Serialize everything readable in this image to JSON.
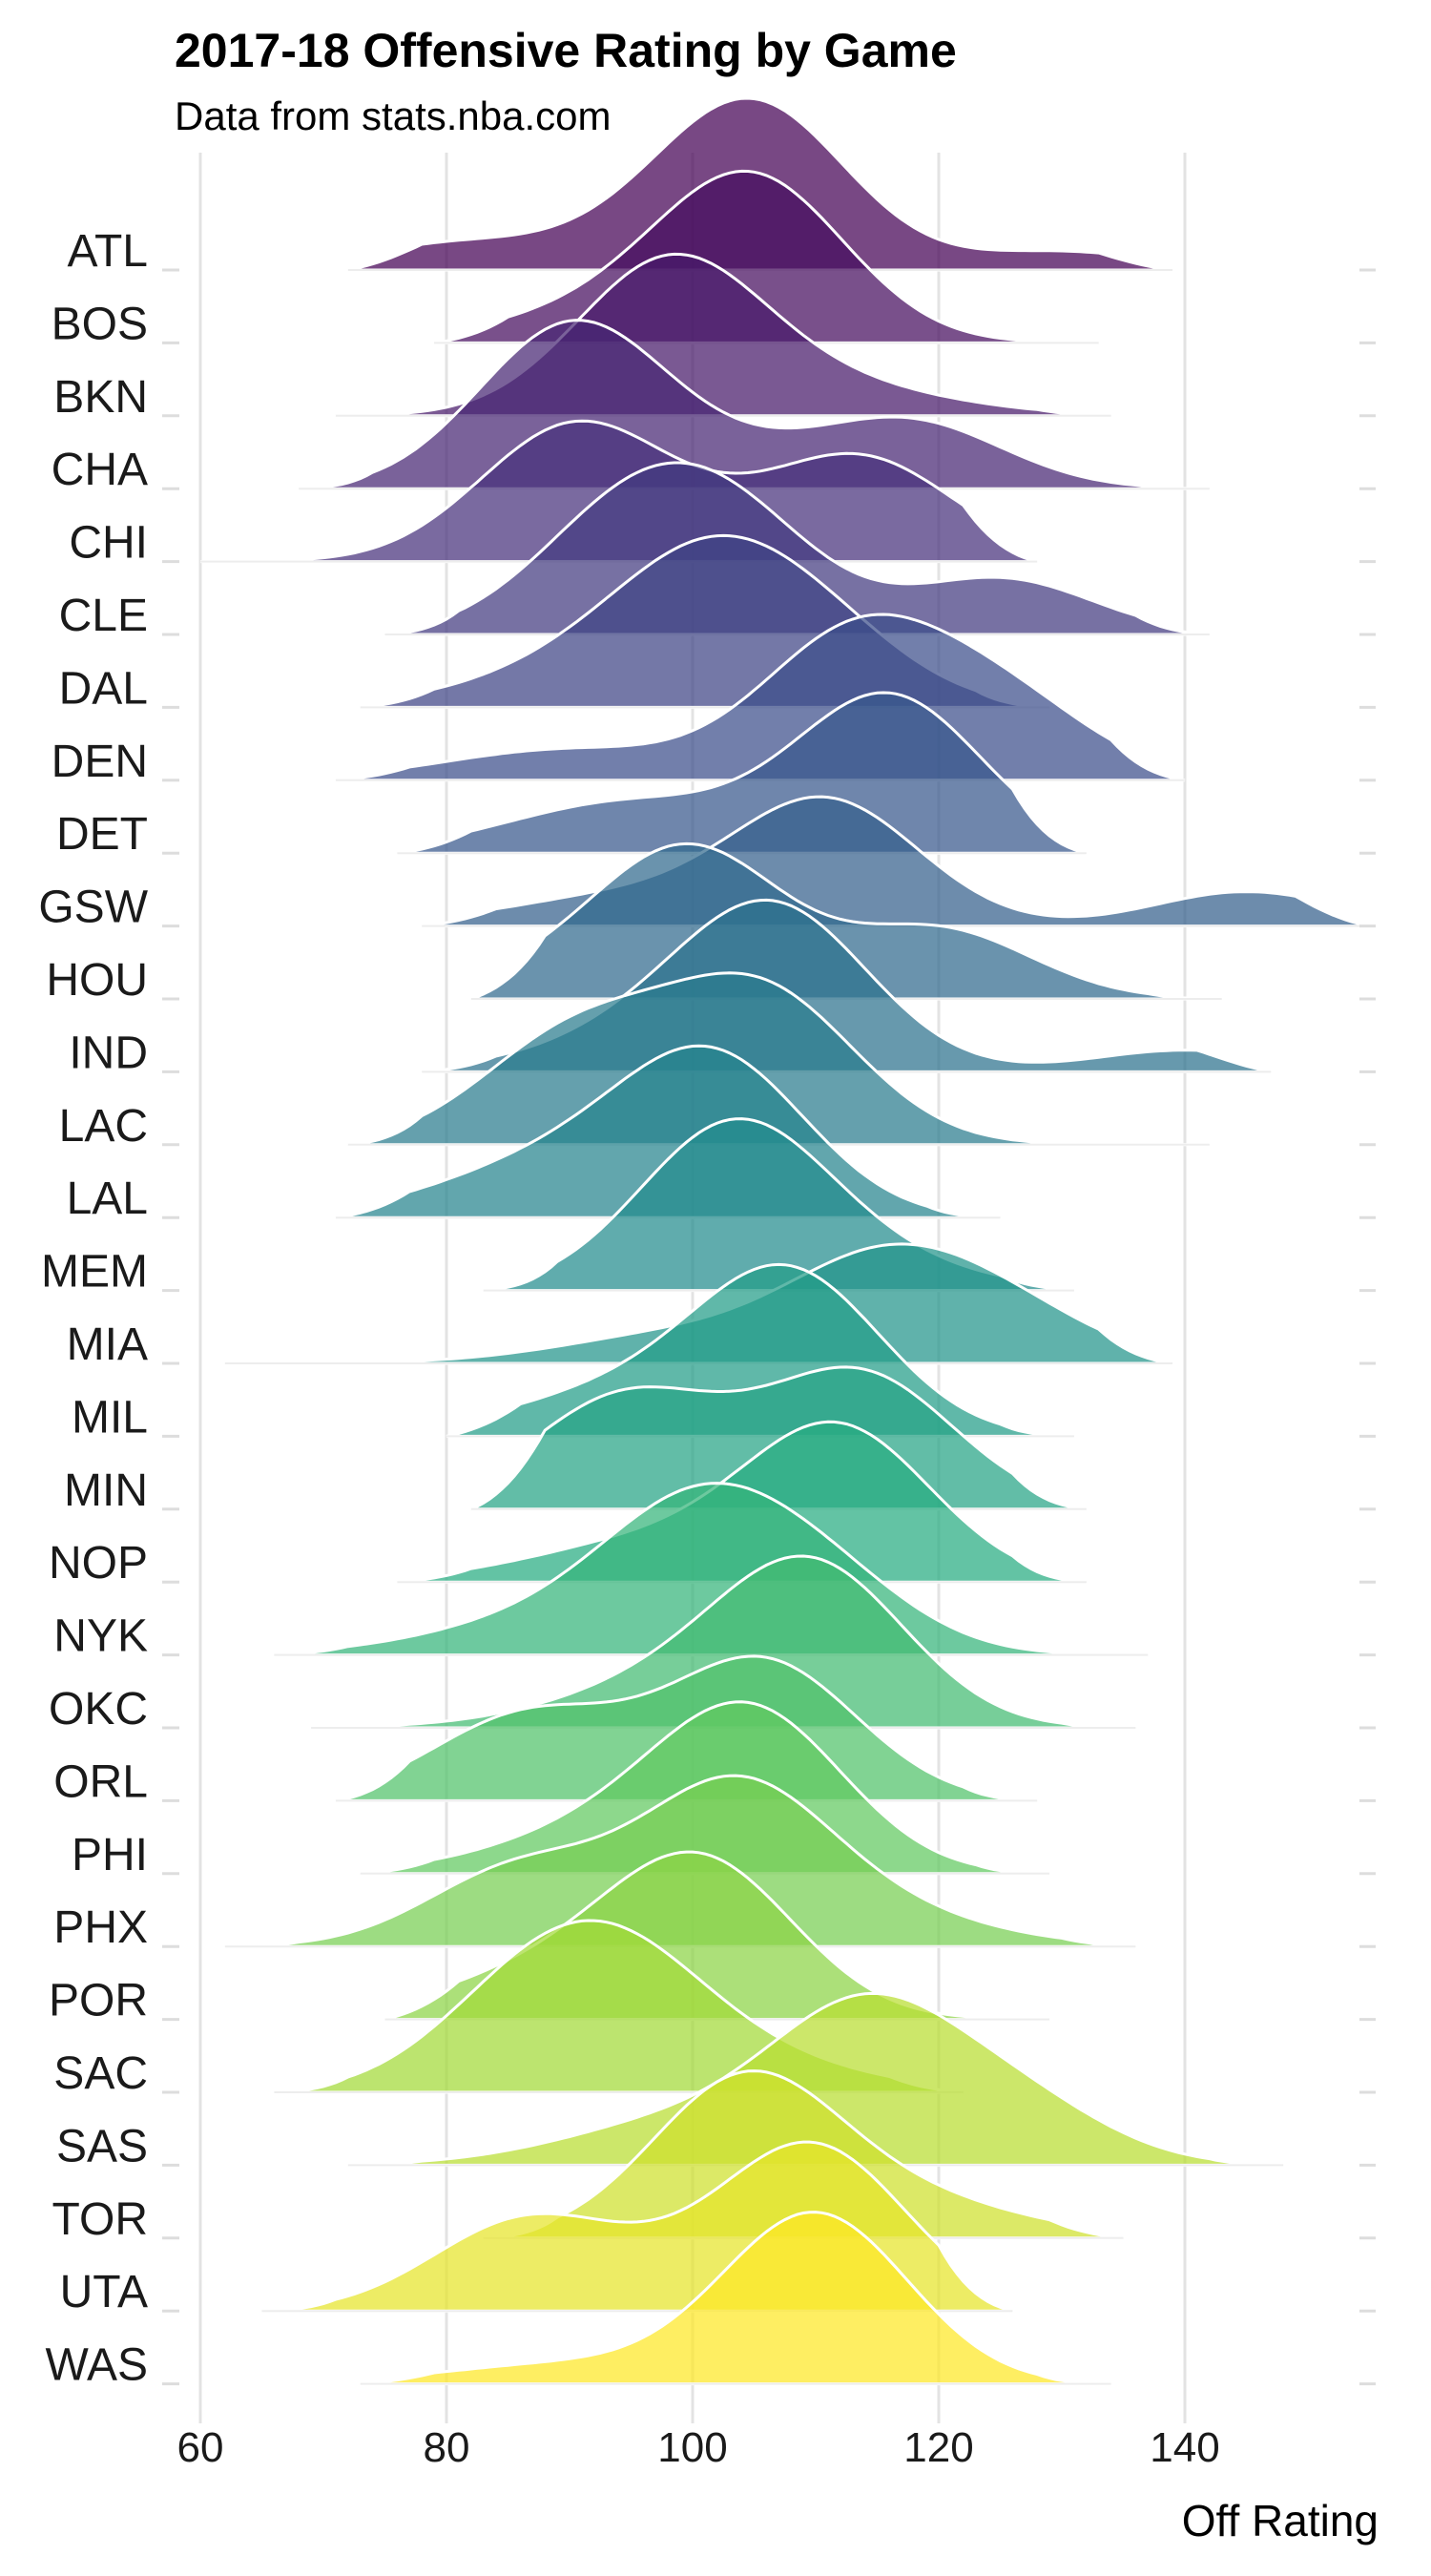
{
  "title": "2017-18 Offensive Rating by Game",
  "subtitle": "Data from stats.nba.com",
  "chart_data": {
    "type": "ridgeline",
    "xlabel": "Off Rating",
    "xlim": [
      58,
      155
    ],
    "x_ticks": [
      60,
      80,
      100,
      120,
      140
    ],
    "grid": "vertical major lines",
    "fill_palette": "viridis (purple to yellow, top to bottom)",
    "outline_color": "#ffffff",
    "series": [
      {
        "name": "ATL",
        "range": [
          72,
          139
        ],
        "peaks": [
          [
            80,
            0.15
          ],
          [
            105,
            0.95
          ],
          [
            130,
            0.12
          ]
        ],
        "secondary_peak": [
          99,
          0.35
        ]
      },
      {
        "name": "BOS",
        "range": [
          79,
          133
        ],
        "peaks": [
          [
            105,
            1.0
          ]
        ],
        "secondary_peak": [
          95,
          0.4
        ]
      },
      {
        "name": "BKN",
        "range": [
          71,
          134
        ],
        "peaks": [
          [
            98,
            0.85
          ]
        ],
        "secondary_peak": [
          110,
          0.3
        ]
      },
      {
        "name": "CHA",
        "range": [
          68,
          142
        ],
        "peaks": [
          [
            90,
            0.9
          ],
          [
            118,
            0.35
          ]
        ],
        "secondary_peak": [
          103,
          0.3
        ]
      },
      {
        "name": "CHI",
        "range": [
          60,
          128
        ],
        "peaks": [
          [
            90,
            0.7
          ],
          [
            114,
            0.55
          ]
        ],
        "secondary_peak": [
          100,
          0.3
        ]
      },
      {
        "name": "CLE",
        "range": [
          75,
          142
        ],
        "peaks": [
          [
            94,
            0.9
          ],
          [
            103,
            0.95
          ],
          [
            125,
            0.5
          ]
        ]
      },
      {
        "name": "DAL",
        "range": [
          73,
          129
        ],
        "peaks": [
          [
            101,
            0.7
          ],
          [
            110,
            0.45
          ]
        ],
        "secondary_peak": [
          93,
          0.5
        ]
      },
      {
        "name": "DEN",
        "range": [
          71,
          140
        ],
        "peaks": [
          [
            113,
            0.8
          ],
          [
            125,
            0.45
          ]
        ],
        "secondary_peak": [
          90,
          0.3
        ]
      },
      {
        "name": "DET",
        "range": [
          76,
          132
        ],
        "peaks": [
          [
            116,
            0.9
          ]
        ],
        "secondary_peak": [
          95,
          0.5
        ]
      },
      {
        "name": "GSW",
        "range": [
          78,
          155
        ],
        "peaks": [
          [
            111,
            0.7
          ],
          [
            145,
            0.2
          ]
        ],
        "secondary_peak": [
          95,
          0.3
        ]
      },
      {
        "name": "HOU",
        "range": [
          82,
          143
        ],
        "peaks": [
          [
            100,
            0.75
          ],
          [
            120,
            0.4
          ]
        ],
        "secondary_peak": [
          93,
          0.3
        ]
      },
      {
        "name": "IND",
        "range": [
          78,
          147
        ],
        "peaks": [
          [
            107,
            0.9
          ],
          [
            140,
            0.15
          ]
        ],
        "secondary_peak": [
          100,
          0.6
        ]
      },
      {
        "name": "LAC",
        "range": [
          72,
          142
        ],
        "peaks": [
          [
            90,
            0.6
          ],
          [
            106,
            0.8
          ]
        ],
        "secondary_peak": [
          100,
          0.5
        ]
      },
      {
        "name": "LAL",
        "range": [
          71,
          125
        ],
        "peaks": [
          [
            102,
            0.85
          ]
        ],
        "secondary_peak": [
          90,
          0.6
        ]
      },
      {
        "name": "MEM",
        "range": [
          83,
          131
        ],
        "peaks": [
          [
            103,
            0.85
          ]
        ],
        "secondary_peak": [
          110,
          0.4
        ]
      },
      {
        "name": "MIA",
        "range": [
          62,
          139
        ],
        "peaks": [
          [
            115,
            0.5
          ],
          [
            125,
            0.3
          ]
        ],
        "secondary_peak": [
          100,
          0.3
        ]
      },
      {
        "name": "MIL",
        "range": [
          80,
          131
        ],
        "peaks": [
          [
            108,
            1.0
          ]
        ],
        "secondary_peak": [
          95,
          0.5
        ]
      },
      {
        "name": "MIN",
        "range": [
          82,
          132
        ],
        "peaks": [
          [
            114,
            0.7
          ],
          [
            94,
            0.55
          ]
        ],
        "secondary_peak": [
          103,
          0.3
        ]
      },
      {
        "name": "NOP",
        "range": [
          76,
          132
        ],
        "peaks": [
          [
            112,
            0.85
          ]
        ],
        "secondary_peak": [
          97,
          0.4
        ]
      },
      {
        "name": "NYK",
        "range": [
          66,
          137
        ],
        "peaks": [
          [
            100,
            0.8
          ],
          [
            110,
            0.5
          ]
        ],
        "secondary_peak": [
          89,
          0.4
        ]
      },
      {
        "name": "OKC",
        "range": [
          69,
          136
        ],
        "peaks": [
          [
            110,
            0.85
          ]
        ],
        "secondary_peak": [
          100,
          0.5
        ]
      },
      {
        "name": "ORL",
        "range": [
          71,
          128
        ],
        "peaks": [
          [
            106,
            0.75
          ],
          [
            86,
            0.4
          ]
        ],
        "secondary_peak": [
          94,
          0.25
        ]
      },
      {
        "name": "PHI",
        "range": [
          73,
          129
        ],
        "peaks": [
          [
            105,
            0.85
          ]
        ],
        "secondary_peak": [
          95,
          0.5
        ]
      },
      {
        "name": "PHX",
        "range": [
          62,
          136
        ],
        "peaks": [
          [
            103,
            0.8
          ],
          [
            86,
            0.45
          ]
        ],
        "secondary_peak": [
          112,
          0.4
        ]
      },
      {
        "name": "POR",
        "range": [
          75,
          129
        ],
        "peaks": [
          [
            101,
            0.8
          ]
        ],
        "secondary_peak": [
          90,
          0.5
        ]
      },
      {
        "name": "SAC",
        "range": [
          66,
          122
        ],
        "peaks": [
          [
            94,
            0.9
          ],
          [
            86,
            0.7
          ]
        ],
        "secondary_peak": [
          103,
          0.5
        ]
      },
      {
        "name": "SAS",
        "range": [
          72,
          148
        ],
        "peaks": [
          [
            114,
            0.9
          ],
          [
            126,
            0.4
          ]
        ],
        "secondary_peak": [
          100,
          0.5
        ]
      },
      {
        "name": "TOR",
        "range": [
          83,
          135
        ],
        "peaks": [
          [
            104,
            0.85
          ]
        ],
        "secondary_peak": [
          116,
          0.4
        ]
      },
      {
        "name": "UTA",
        "range": [
          65,
          126
        ],
        "peaks": [
          [
            110,
            0.9
          ],
          [
            86,
            0.45
          ]
        ],
        "secondary_peak": [
          97,
          0.3
        ]
      },
      {
        "name": "WAS",
        "range": [
          73,
          134
        ],
        "peaks": [
          [
            110,
            1.0
          ]
        ],
        "secondary_peak": [
          90,
          0.2
        ]
      }
    ]
  }
}
